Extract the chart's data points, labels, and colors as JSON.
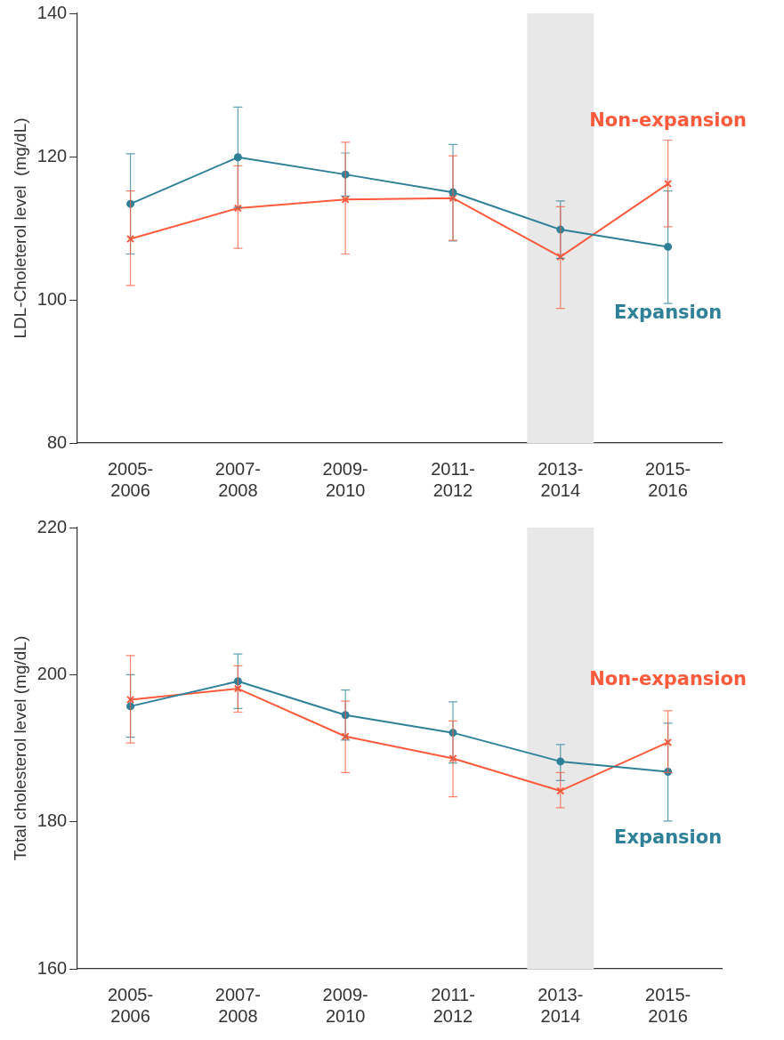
{
  "chart_data": [
    {
      "type": "line",
      "ylabel": "LDL-Choleterol level  (mg/dL)",
      "categories": [
        "2005-2006",
        "2007-2008",
        "2009-2010",
        "2011-2012",
        "2013-2014",
        "2015-2016"
      ],
      "ylim": [
        80,
        140
      ],
      "yticks": [
        80,
        100,
        120,
        140
      ],
      "grid": false,
      "legend": false,
      "bands": [
        {
          "axis": "x",
          "from": "2013-2014",
          "to": "2013-2014",
          "color": "#e8e8e8"
        }
      ],
      "series": [
        {
          "name": "Expansion",
          "color": "#2e8199",
          "marker": "circle",
          "values": [
            113.4,
            119.9,
            117.5,
            115.0,
            109.8,
            107.4
          ],
          "errors": [
            [
              106.4,
              120.4
            ],
            [
              112.9,
              126.9
            ],
            [
              114.5,
              120.5
            ],
            [
              108.2,
              121.7
            ],
            [
              105.8,
              113.8
            ],
            [
              99.5,
              115.2
            ]
          ]
        },
        {
          "name": "Non-expansion",
          "color": "#ff5a3c",
          "marker": "cross",
          "values": [
            108.5,
            112.8,
            114.0,
            114.2,
            106.0,
            116.2
          ],
          "errors": [
            [
              102.0,
              115.2
            ],
            [
              107.2,
              118.7
            ],
            [
              106.4,
              122.0
            ],
            [
              108.3,
              120.1
            ],
            [
              98.8,
              113.0
            ],
            [
              110.2,
              122.3
            ]
          ]
        }
      ]
    },
    {
      "type": "line",
      "ylabel": "Total cholesterol level (mg/dL)",
      "categories": [
        "2005-2006",
        "2007-2008",
        "2009-2010",
        "2011-2012",
        "2013-2014",
        "2015-2016"
      ],
      "ylim": [
        160,
        220
      ],
      "yticks": [
        160,
        180,
        200,
        220
      ],
      "grid": false,
      "legend": false,
      "bands": [
        {
          "axis": "x",
          "from": "2013-2014",
          "to": "2013-2014",
          "color": "#e8e8e8"
        }
      ],
      "series": [
        {
          "name": "Expansion",
          "color": "#2e8199",
          "marker": "circle",
          "values": [
            195.7,
            199.1,
            194.5,
            192.1,
            188.2,
            186.8
          ],
          "errors": [
            [
              191.5,
              200.0
            ],
            [
              195.4,
              202.8
            ],
            [
              191.1,
              197.9
            ],
            [
              188.0,
              196.3
            ],
            [
              185.6,
              190.5
            ],
            [
              180.1,
              193.4
            ]
          ]
        },
        {
          "name": "Non-expansion",
          "color": "#ff5a3c",
          "marker": "cross",
          "values": [
            196.6,
            198.1,
            191.6,
            188.6,
            184.2,
            190.8
          ],
          "errors": [
            [
              190.7,
              202.6
            ],
            [
              194.9,
              201.2
            ],
            [
              186.7,
              196.4
            ],
            [
              183.4,
              193.7
            ],
            [
              181.9,
              186.7
            ],
            [
              186.7,
              195.1
            ]
          ]
        }
      ]
    }
  ]
}
